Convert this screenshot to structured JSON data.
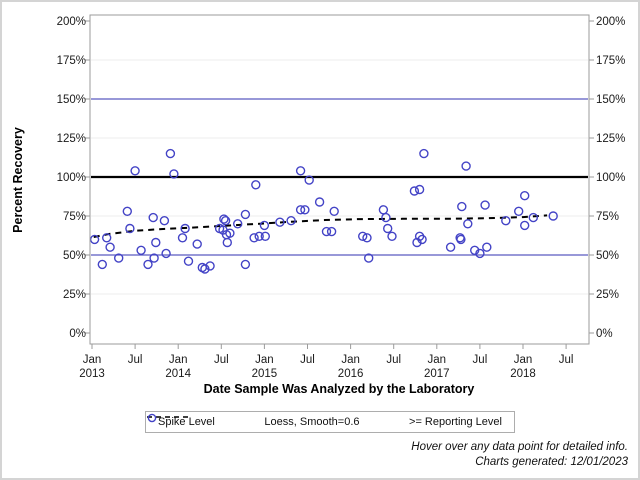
{
  "colors": {
    "point": "#4343c6",
    "reporting_limit_line": "#5b5bc0",
    "spike_level_line": "#000000",
    "loess_line": "#000000",
    "grid": "#ececec",
    "frame": "#9b9b9b",
    "tick": "#9b9b9b",
    "text": "#1a1a1a"
  },
  "chart_data": {
    "type": "scatter",
    "title": "",
    "xlabel": "Date Sample Was Analyzed by the Laboratory",
    "ylabel": "Percent Recovery",
    "x_axis": {
      "min": 2013.0,
      "max": 2018.5,
      "ticks": [
        {
          "value": 2013.0,
          "month": "Jan",
          "year": "2013"
        },
        {
          "value": 2013.5,
          "month": "Jul",
          "year": ""
        },
        {
          "value": 2014.0,
          "month": "Jan",
          "year": "2014"
        },
        {
          "value": 2014.5,
          "month": "Jul",
          "year": ""
        },
        {
          "value": 2015.0,
          "month": "Jan",
          "year": "2015"
        },
        {
          "value": 2015.5,
          "month": "Jul",
          "year": ""
        },
        {
          "value": 2016.0,
          "month": "Jan",
          "year": "2016"
        },
        {
          "value": 2016.5,
          "month": "Jul",
          "year": ""
        },
        {
          "value": 2017.0,
          "month": "Jan",
          "year": "2017"
        },
        {
          "value": 2017.5,
          "month": "Jul",
          "year": ""
        },
        {
          "value": 2018.0,
          "month": "Jan",
          "year": "2018"
        },
        {
          "value": 2018.5,
          "month": "Jul",
          "year": ""
        }
      ]
    },
    "y_axis": {
      "min": 0,
      "max": 200,
      "mirrored_labels": true,
      "ticks": [
        {
          "value": 0,
          "label": "0%"
        },
        {
          "value": 25,
          "label": "25%"
        },
        {
          "value": 50,
          "label": "50%"
        },
        {
          "value": 75,
          "label": "75%"
        },
        {
          "value": 100,
          "label": "100%"
        },
        {
          "value": 125,
          "label": "125%"
        },
        {
          "value": 150,
          "label": "150%"
        },
        {
          "value": 175,
          "label": "175%"
        },
        {
          "value": 200,
          "label": "200%"
        }
      ]
    },
    "reference_lines": [
      {
        "value": 150,
        "weight": "thin"
      },
      {
        "value": 100,
        "weight": "thick"
      },
      {
        "value": 50,
        "weight": "thin"
      }
    ],
    "series": [
      {
        "name": ">= Reporting Level",
        "type": "scatter",
        "marker": "open-circle",
        "points": [
          [
            2013.03,
            60
          ],
          [
            2013.12,
            44
          ],
          [
            2013.17,
            61
          ],
          [
            2013.21,
            55
          ],
          [
            2013.31,
            48
          ],
          [
            2013.41,
            78
          ],
          [
            2013.44,
            67
          ],
          [
            2013.5,
            104
          ],
          [
            2013.57,
            53
          ],
          [
            2013.65,
            44
          ],
          [
            2013.71,
            74
          ],
          [
            2013.72,
            48
          ],
          [
            2013.74,
            58
          ],
          [
            2013.84,
            72
          ],
          [
            2013.86,
            51
          ],
          [
            2013.91,
            115
          ],
          [
            2013.95,
            102
          ],
          [
            2014.05,
            61
          ],
          [
            2014.08,
            67
          ],
          [
            2014.12,
            46
          ],
          [
            2014.22,
            57
          ],
          [
            2014.28,
            42
          ],
          [
            2014.31,
            41
          ],
          [
            2014.37,
            43
          ],
          [
            2014.48,
            67
          ],
          [
            2014.52,
            66
          ],
          [
            2014.53,
            73
          ],
          [
            2014.55,
            72
          ],
          [
            2014.56,
            63
          ],
          [
            2014.57,
            58
          ],
          [
            2014.6,
            64
          ],
          [
            2014.69,
            70
          ],
          [
            2014.78,
            76
          ],
          [
            2014.78,
            44
          ],
          [
            2014.88,
            61
          ],
          [
            2014.9,
            95
          ],
          [
            2014.94,
            62
          ],
          [
            2015.0,
            69
          ],
          [
            2015.01,
            62
          ],
          [
            2015.18,
            71
          ],
          [
            2015.31,
            72
          ],
          [
            2015.42,
            104
          ],
          [
            2015.42,
            79
          ],
          [
            2015.47,
            79
          ],
          [
            2015.52,
            98
          ],
          [
            2015.64,
            84
          ],
          [
            2015.72,
            65
          ],
          [
            2015.78,
            65
          ],
          [
            2015.81,
            78
          ],
          [
            2016.14,
            62
          ],
          [
            2016.19,
            61
          ],
          [
            2016.21,
            48
          ],
          [
            2016.38,
            79
          ],
          [
            2016.41,
            74
          ],
          [
            2016.43,
            67
          ],
          [
            2016.48,
            62
          ],
          [
            2016.74,
            91
          ],
          [
            2016.77,
            58
          ],
          [
            2016.8,
            92
          ],
          [
            2016.8,
            62
          ],
          [
            2016.83,
            60
          ],
          [
            2016.85,
            115
          ],
          [
            2017.16,
            55
          ],
          [
            2017.27,
            61
          ],
          [
            2017.28,
            60
          ],
          [
            2017.29,
            81
          ],
          [
            2017.34,
            107
          ],
          [
            2017.36,
            70
          ],
          [
            2017.44,
            53
          ],
          [
            2017.5,
            51
          ],
          [
            2017.56,
            82
          ],
          [
            2017.58,
            55
          ],
          [
            2017.8,
            72
          ],
          [
            2017.95,
            78
          ],
          [
            2018.02,
            88
          ],
          [
            2018.02,
            69
          ],
          [
            2018.12,
            74
          ],
          [
            2018.35,
            75
          ]
        ]
      },
      {
        "name": "Loess, Smooth=0.6",
        "type": "line",
        "line_style": "dashed",
        "points": [
          [
            2013.02,
            61.5
          ],
          [
            2013.2,
            63.5
          ],
          [
            2013.5,
            65.5
          ],
          [
            2013.8,
            66.6
          ],
          [
            2014.1,
            67.4
          ],
          [
            2014.5,
            68.6
          ],
          [
            2014.8,
            69.6
          ],
          [
            2015.0,
            70.2
          ],
          [
            2015.3,
            71.3
          ],
          [
            2015.7,
            72.4
          ],
          [
            2016.1,
            73.0
          ],
          [
            2016.6,
            73.2
          ],
          [
            2017.1,
            73.2
          ],
          [
            2017.6,
            73.6
          ],
          [
            2018.0,
            74.3
          ],
          [
            2018.28,
            75.4
          ]
        ]
      }
    ]
  },
  "legend": {
    "title": "Spike Level",
    "items": [
      {
        "symbol": "dashed-line",
        "label": "Loess, Smooth=0.6"
      },
      {
        "symbol": "open-circle",
        "label": ">= Reporting Level"
      }
    ]
  },
  "footer": {
    "line1": "Hover over any data point for detailed info.",
    "line2": "Charts generated: 12/01/2023"
  }
}
